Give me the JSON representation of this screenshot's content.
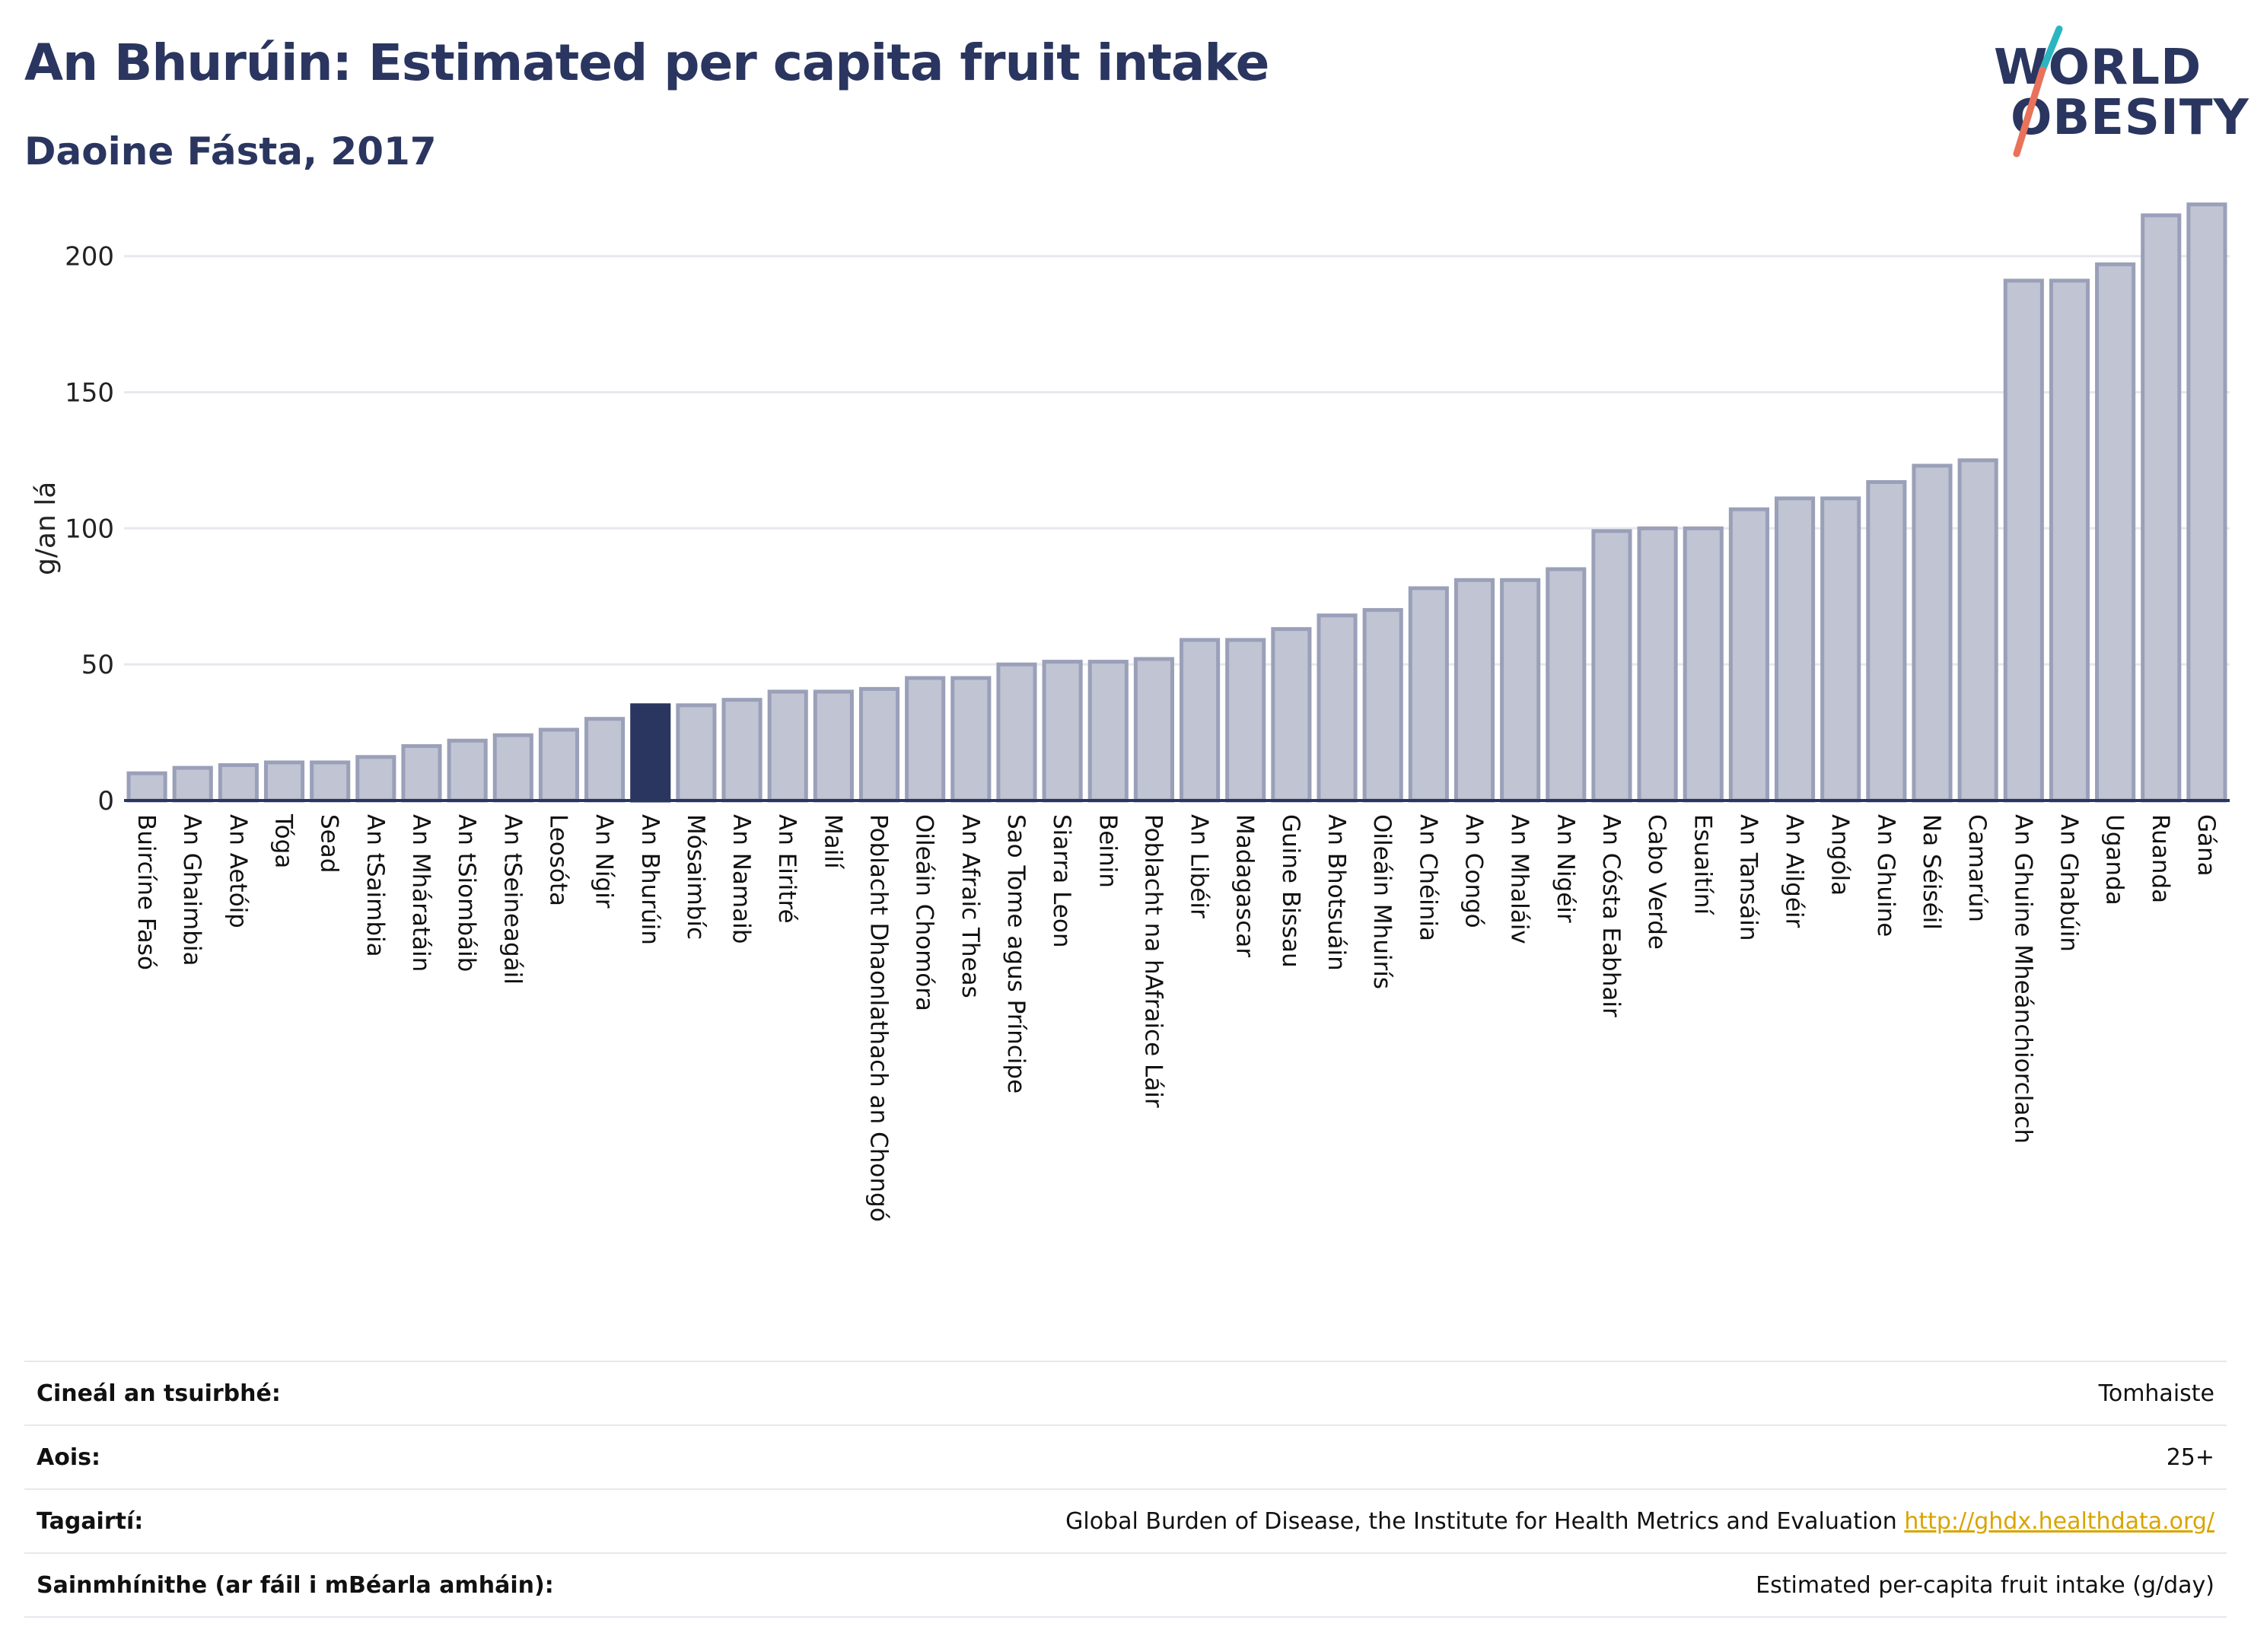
{
  "header": {
    "title": "An Bhurúin: Estimated per capita fruit intake",
    "subtitle": "Daoine Fásta, 2017"
  },
  "logo": {
    "line1": "WORLD",
    "line2": "OBESITY",
    "accent_colors": [
      "#2ab6c1",
      "#e8735a"
    ]
  },
  "colors": {
    "bar": "#c0c4d3",
    "bar_border": "#9aa0b8",
    "highlight": "#2a3560",
    "grid": "#e8e8ee",
    "axis": "#2a3560"
  },
  "chart_data": {
    "type": "bar",
    "title": "An Bhurúin: Estimated per capita fruit intake",
    "subtitle": "Daoine Fásta, 2017",
    "xlabel": "",
    "ylabel": "g/an lá",
    "ylim": [
      0,
      225
    ],
    "yticks": [
      0,
      50,
      100,
      150,
      200
    ],
    "grid": true,
    "highlight_category": "An Bhurúin",
    "categories": [
      "Buircíne Fasó",
      "An Ghaimbia",
      "An Aetóip",
      "Tóga",
      "Sead",
      "An tSaimbia",
      "An Mháratáin",
      "An tSiombáib",
      "An tSeineagáil",
      "Leosóta",
      "An Nígir",
      "An Bhurúin",
      "Mósaimbíc",
      "An Namaib",
      "An Eiritré",
      "Mailí",
      "Poblacht Dhaonlathach an Chongó",
      "Oileáin Chomóra",
      "An Afraic Theas",
      "Sao Tome agus Príncipe",
      "Siarra Leon",
      "Beinin",
      "Poblacht na hAfraice Láir",
      "An Libéir",
      "Madagascar",
      "Guine Bissau",
      "An Bhotsuáin",
      "Oileáin Mhuirís",
      "An Chéinia",
      "An Congó",
      "An Mhaláiv",
      "An Nigéir",
      "An Cósta Eabhair",
      "Cabo Verde",
      "Esuaitíní",
      "An Tansáin",
      "An Ailgéir",
      "Angóla",
      "An Ghuine",
      "Na Séiséil",
      "Camarún",
      "An Ghuine Mheánchiorclach",
      "An Ghabúin",
      "Uganda",
      "Ruanda",
      "Gána"
    ],
    "values": [
      10,
      12,
      13,
      14,
      14,
      16,
      20,
      22,
      24,
      26,
      30,
      35,
      35,
      37,
      40,
      40,
      41,
      45,
      45,
      50,
      51,
      51,
      52,
      59,
      59,
      63,
      68,
      70,
      78,
      81,
      81,
      85,
      99,
      100,
      100,
      107,
      111,
      111,
      117,
      123,
      125,
      191,
      191,
      197,
      215,
      219
    ]
  },
  "info_table": {
    "rows": [
      {
        "key": "Cineál an tsuirbhé:",
        "value": "Tomhaiste",
        "link": ""
      },
      {
        "key": "Aois:",
        "value": "25+",
        "link": ""
      },
      {
        "key": "Tagairtí:",
        "value": "Global Burden of Disease, the Institute for Health Metrics and Evaluation",
        "link": "http://ghdx.healthdata.org/"
      },
      {
        "key": "Sainmhínithe (ar fáil i mBéarla amháin):",
        "value": "Estimated per-capita fruit intake (g/day)",
        "link": ""
      }
    ]
  }
}
